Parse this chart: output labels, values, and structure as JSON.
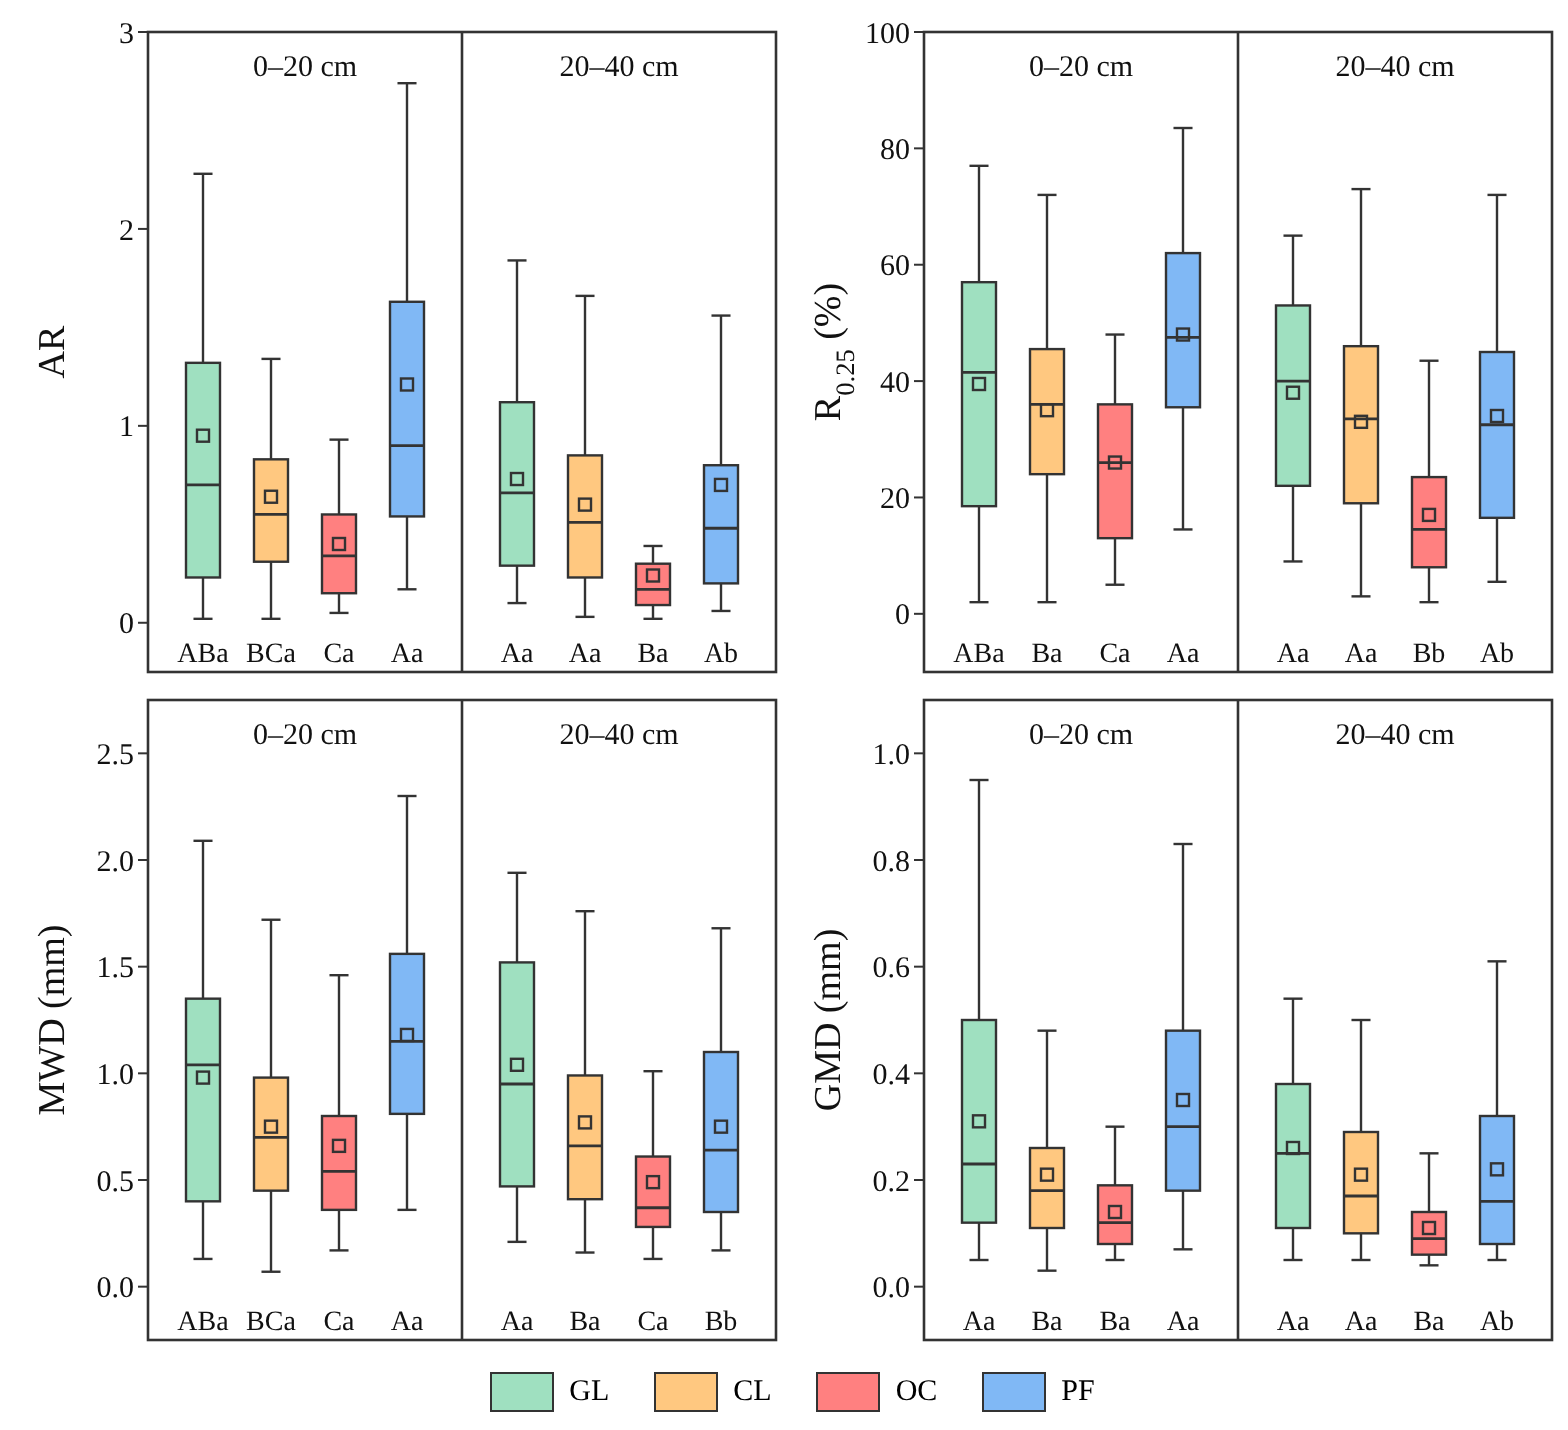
{
  "chart_data": [
    {
      "type": "box",
      "ylabel": "AR",
      "categories": [
        "0–20 cm",
        "20–40 cm"
      ],
      "ylim": [
        -0.25,
        3
      ],
      "yticks": [
        0,
        1,
        2,
        3
      ],
      "series": [
        {
          "color": "#9fe0c0",
          "value_labels": [
            "ABa",
            "Aa"
          ],
          "boxes": [
            {
              "low": 0.02,
              "q1": 0.23,
              "median": 0.7,
              "q3": 1.32,
              "high": 2.28,
              "mean": 0.95
            },
            {
              "low": 0.1,
              "q1": 0.29,
              "median": 0.66,
              "q3": 1.12,
              "high": 1.84,
              "mean": 0.73
            }
          ]
        },
        {
          "color": "#ffc880",
          "value_labels": [
            "BCa",
            "Aa"
          ],
          "boxes": [
            {
              "low": 0.02,
              "q1": 0.31,
              "median": 0.55,
              "q3": 0.83,
              "high": 1.34,
              "mean": 0.64
            },
            {
              "low": 0.03,
              "q1": 0.23,
              "median": 0.51,
              "q3": 0.85,
              "high": 1.66,
              "mean": 0.6
            }
          ]
        },
        {
          "color": "#ff8080",
          "value_labels": [
            "Ca",
            "Ba"
          ],
          "boxes": [
            {
              "low": 0.05,
              "q1": 0.15,
              "median": 0.34,
              "q3": 0.55,
              "high": 0.93,
              "mean": 0.4
            },
            {
              "low": 0.02,
              "q1": 0.09,
              "median": 0.17,
              "q3": 0.3,
              "high": 0.39,
              "mean": 0.24
            }
          ]
        },
        {
          "color": "#80b8f5",
          "value_labels": [
            "Aa",
            "Ab"
          ],
          "boxes": [
            {
              "low": 0.17,
              "q1": 0.54,
              "median": 0.9,
              "q3": 1.63,
              "high": 2.74,
              "mean": 1.21
            },
            {
              "low": 0.06,
              "q1": 0.2,
              "median": 0.48,
              "q3": 0.8,
              "high": 1.56,
              "mean": 0.7
            }
          ]
        }
      ]
    },
    {
      "type": "box",
      "ylabel": "R$_{0.25}$ (%)",
      "categories": [
        "0–20 cm",
        "20–40 cm"
      ],
      "ylim": [
        -10,
        100
      ],
      "yticks": [
        0,
        20,
        40,
        60,
        80,
        100
      ],
      "series": [
        {
          "color": "#9fe0c0",
          "value_labels": [
            "ABa",
            "Aa"
          ],
          "boxes": [
            {
              "low": 2,
              "q1": 18.5,
              "median": 41.5,
              "q3": 57,
              "high": 77,
              "mean": 39.5
            },
            {
              "low": 9,
              "q1": 22,
              "median": 40,
              "q3": 53,
              "high": 65,
              "mean": 38
            }
          ]
        },
        {
          "color": "#ffc880",
          "value_labels": [
            "Ba",
            "Aa"
          ],
          "boxes": [
            {
              "low": 2,
              "q1": 24,
              "median": 36,
              "q3": 45.5,
              "high": 72,
              "mean": 35
            },
            {
              "low": 3,
              "q1": 19,
              "median": 33.5,
              "q3": 46,
              "high": 73,
              "mean": 33
            }
          ]
        },
        {
          "color": "#ff8080",
          "value_labels": [
            "Ca",
            "Bb"
          ],
          "boxes": [
            {
              "low": 5,
              "q1": 13,
              "median": 26,
              "q3": 36,
              "high": 48,
              "mean": 26
            },
            {
              "low": 2,
              "q1": 8,
              "median": 14.5,
              "q3": 23.5,
              "high": 43.5,
              "mean": 17
            }
          ]
        },
        {
          "color": "#80b8f5",
          "value_labels": [
            "Aa",
            "Ab"
          ],
          "boxes": [
            {
              "low": 14.5,
              "q1": 35.5,
              "median": 47.5,
              "q3": 62,
              "high": 83.5,
              "mean": 48
            },
            {
              "low": 5.5,
              "q1": 16.5,
              "median": 32.5,
              "q3": 45,
              "high": 72,
              "mean": 34
            }
          ]
        }
      ]
    },
    {
      "type": "box",
      "ylabel": "MWD (mm)",
      "categories": [
        "0–20 cm",
        "20–40 cm"
      ],
      "ylim": [
        -0.25,
        2.75
      ],
      "yticks": [
        {
          "value": 0,
          "label": "0.0"
        },
        {
          "value": 0.5,
          "label": "0.5"
        },
        {
          "value": 1,
          "label": "1.0"
        },
        {
          "value": 1.5,
          "label": "1.5"
        },
        {
          "value": 2,
          "label": "2.0"
        },
        {
          "value": 2.5,
          "label": "2.5"
        }
      ],
      "series": [
        {
          "color": "#9fe0c0",
          "value_labels": [
            "ABa",
            "Aa"
          ],
          "boxes": [
            {
              "low": 0.13,
              "q1": 0.4,
              "median": 1.04,
              "q3": 1.35,
              "high": 2.09,
              "mean": 0.98
            },
            {
              "low": 0.21,
              "q1": 0.47,
              "median": 0.95,
              "q3": 1.52,
              "high": 1.94,
              "mean": 1.04
            }
          ]
        },
        {
          "color": "#ffc880",
          "value_labels": [
            "BCa",
            "Ba"
          ],
          "boxes": [
            {
              "low": 0.07,
              "q1": 0.45,
              "median": 0.7,
              "q3": 0.98,
              "high": 1.72,
              "mean": 0.75
            },
            {
              "low": 0.16,
              "q1": 0.41,
              "median": 0.66,
              "q3": 0.99,
              "high": 1.76,
              "mean": 0.77
            }
          ]
        },
        {
          "color": "#ff8080",
          "value_labels": [
            "Ca",
            "Ca"
          ],
          "boxes": [
            {
              "low": 0.17,
              "q1": 0.36,
              "median": 0.54,
              "q3": 0.8,
              "high": 1.46,
              "mean": 0.66
            },
            {
              "low": 0.13,
              "q1": 0.28,
              "median": 0.37,
              "q3": 0.61,
              "high": 1.01,
              "mean": 0.49
            }
          ]
        },
        {
          "color": "#80b8f5",
          "value_labels": [
            "Aa",
            "Bb"
          ],
          "boxes": [
            {
              "low": 0.36,
              "q1": 0.81,
              "median": 1.15,
              "q3": 1.56,
              "high": 2.3,
              "mean": 1.18
            },
            {
              "low": 0.17,
              "q1": 0.35,
              "median": 0.64,
              "q3": 1.1,
              "high": 1.68,
              "mean": 0.75
            }
          ]
        }
      ]
    },
    {
      "type": "box",
      "ylabel": "GMD (mm)",
      "categories": [
        "0–20 cm",
        "20–40 cm"
      ],
      "ylim": [
        -0.1,
        1.1
      ],
      "yticks": [
        {
          "value": 0,
          "label": "0.0"
        },
        {
          "value": 0.2,
          "label": "0.2"
        },
        {
          "value": 0.4,
          "label": "0.4"
        },
        {
          "value": 0.6,
          "label": "0.6"
        },
        {
          "value": 0.8,
          "label": "0.8"
        },
        {
          "value": 1,
          "label": "1.0"
        }
      ],
      "legend": "bottom",
      "series": [
        {
          "name": "GL",
          "color": "#9fe0c0",
          "value_labels": [
            "Aa",
            "Aa"
          ],
          "boxes": [
            {
              "low": 0.05,
              "q1": 0.12,
              "median": 0.23,
              "q3": 0.5,
              "high": 0.95,
              "mean": 0.31
            },
            {
              "low": 0.05,
              "q1": 0.11,
              "median": 0.25,
              "q3": 0.38,
              "high": 0.54,
              "mean": 0.26
            }
          ]
        },
        {
          "name": "CL",
          "color": "#ffc880",
          "value_labels": [
            "Ba",
            "Aa"
          ],
          "boxes": [
            {
              "low": 0.03,
              "q1": 0.11,
              "median": 0.18,
              "q3": 0.26,
              "high": 0.48,
              "mean": 0.21
            },
            {
              "low": 0.05,
              "q1": 0.1,
              "median": 0.17,
              "q3": 0.29,
              "high": 0.5,
              "mean": 0.21
            }
          ]
        },
        {
          "name": "OC",
          "color": "#ff8080",
          "value_labels": [
            "Ba",
            "Ba"
          ],
          "boxes": [
            {
              "low": 0.05,
              "q1": 0.08,
              "median": 0.12,
              "q3": 0.19,
              "high": 0.3,
              "mean": 0.14
            },
            {
              "low": 0.04,
              "q1": 0.06,
              "median": 0.09,
              "q3": 0.14,
              "high": 0.25,
              "mean": 0.11
            }
          ]
        },
        {
          "name": "PF",
          "color": "#80b8f5",
          "value_labels": [
            "Aa",
            "Ab"
          ],
          "boxes": [
            {
              "low": 0.07,
              "q1": 0.18,
              "median": 0.3,
              "q3": 0.48,
              "high": 0.83,
              "mean": 0.35
            },
            {
              "low": 0.05,
              "q1": 0.08,
              "median": 0.16,
              "q3": 0.32,
              "high": 0.61,
              "mean": 0.22
            }
          ]
        }
      ]
    }
  ]
}
